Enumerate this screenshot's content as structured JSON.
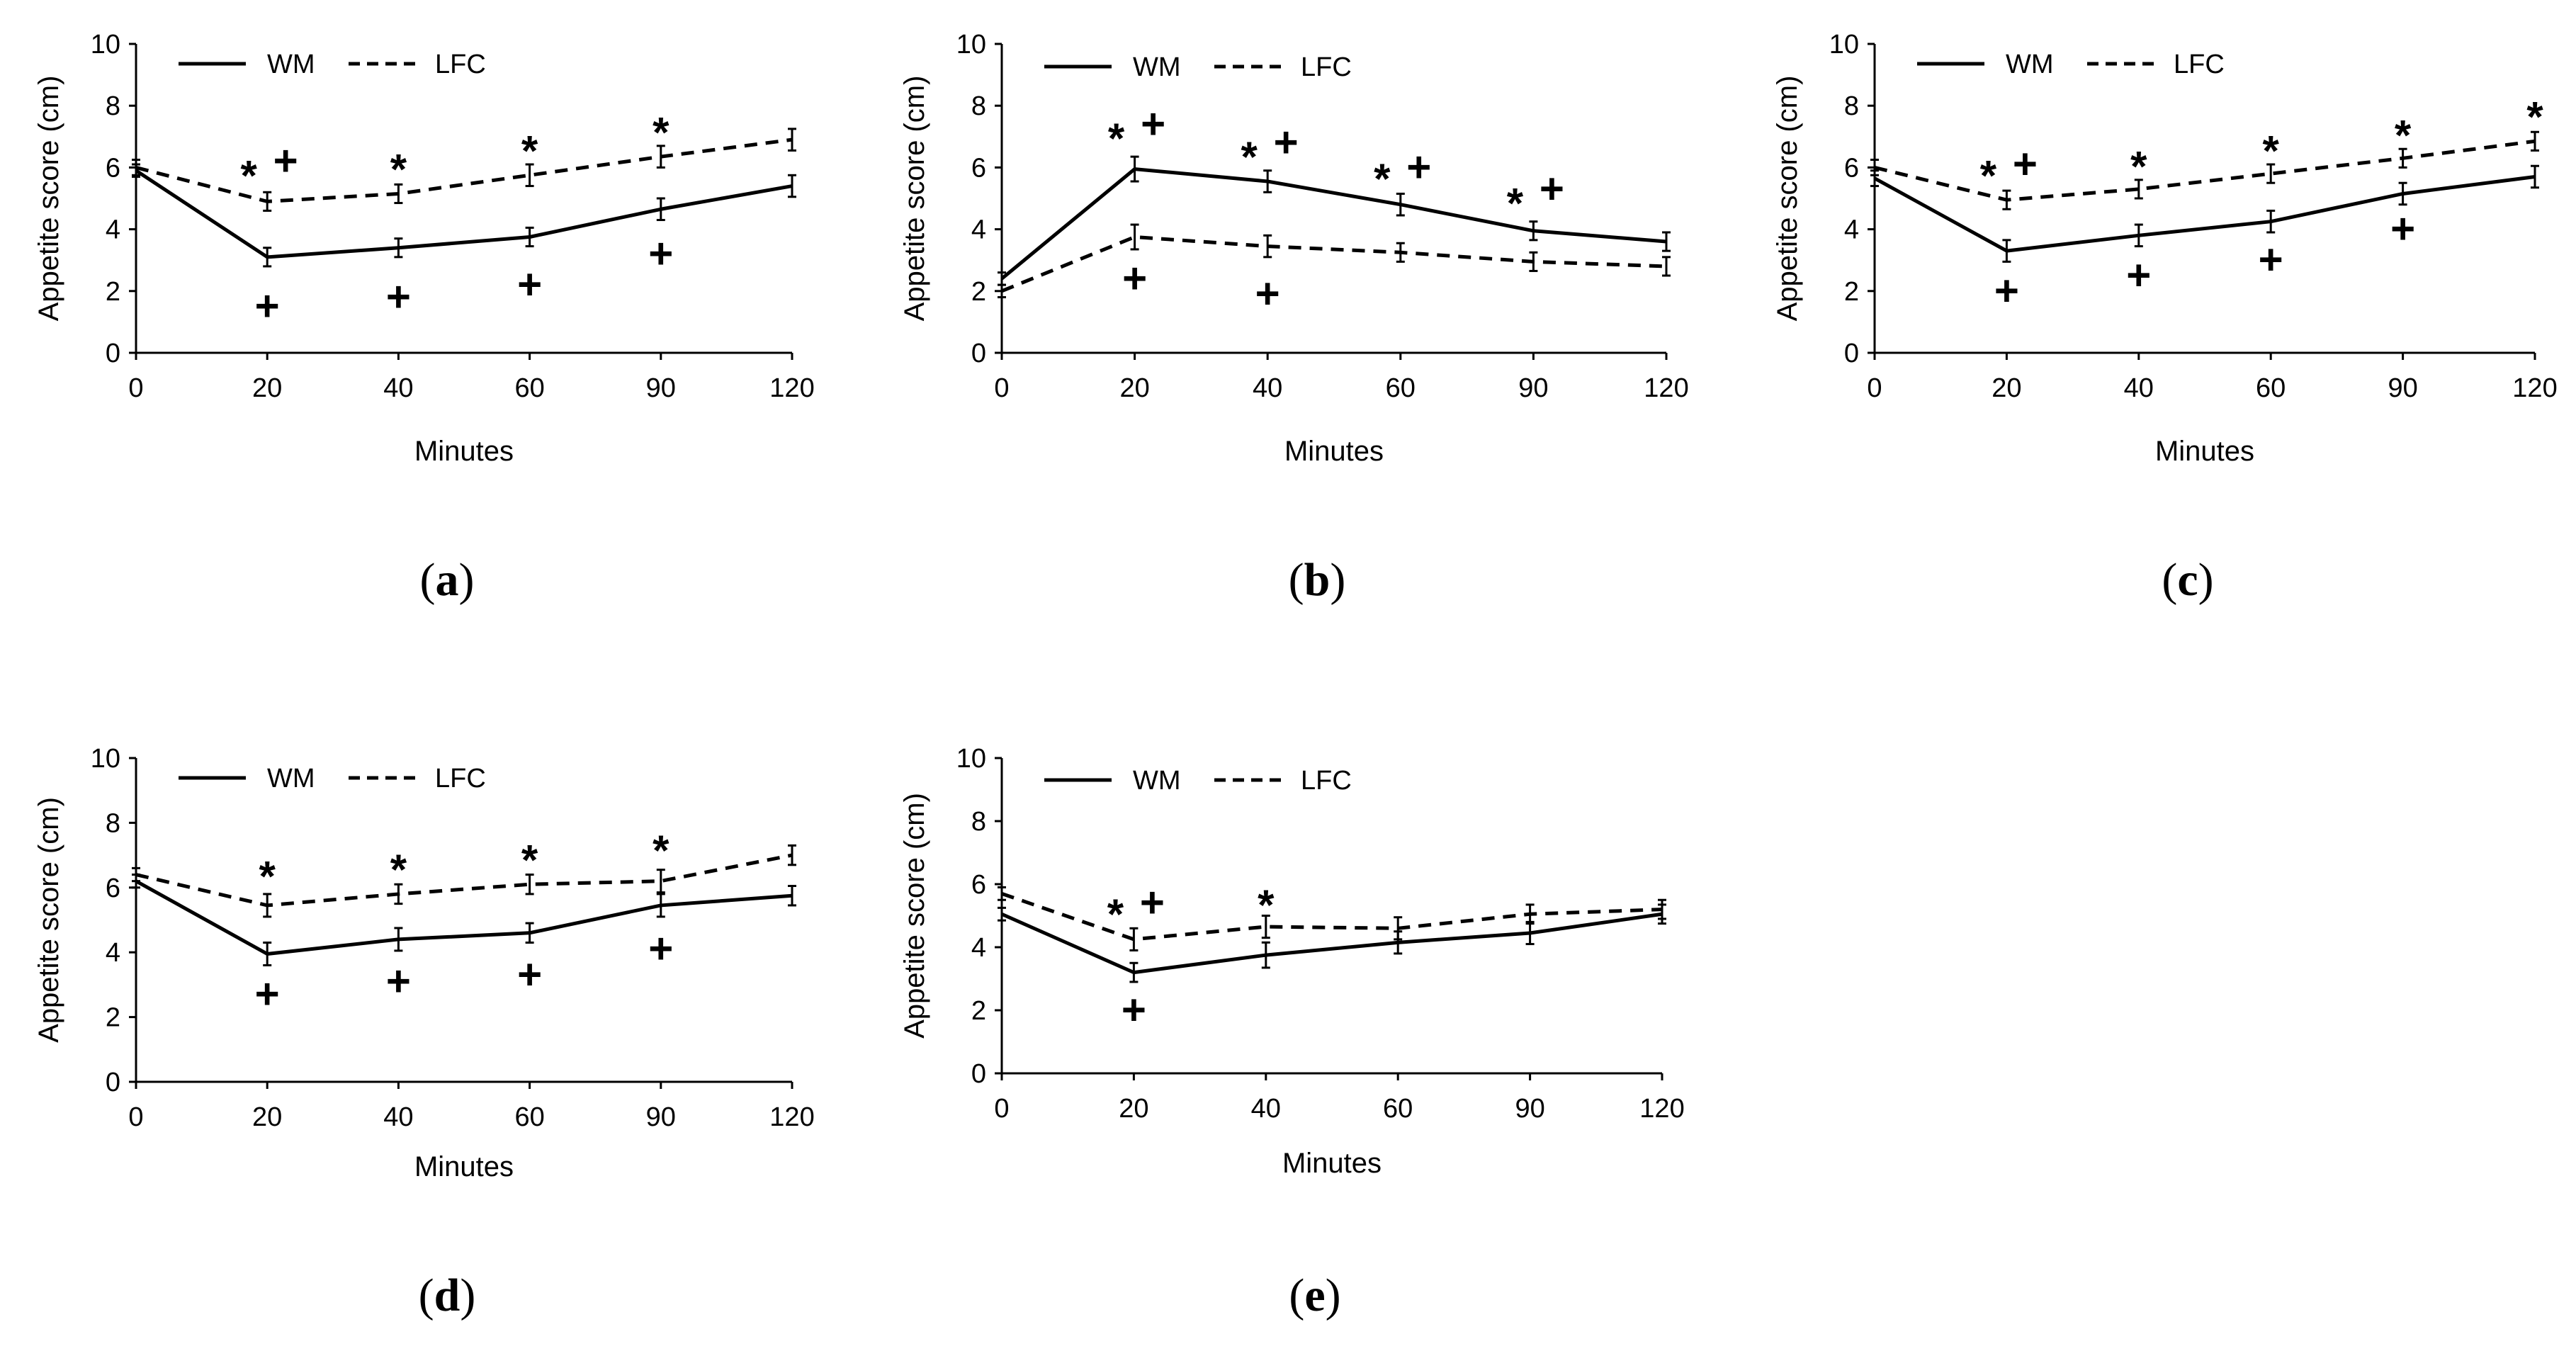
{
  "chart_data": [
    {
      "panel": "a",
      "type": "line",
      "x": [
        0,
        20,
        40,
        60,
        90,
        120
      ],
      "xticks": [
        "0",
        "20",
        "40",
        "60",
        "90",
        "120"
      ],
      "ylim": [
        0,
        10
      ],
      "yticks": [
        "0",
        "2",
        "4",
        "6",
        "8",
        "10"
      ],
      "xlabel": "Minutes",
      "ylabel": "Appetite score (cm)",
      "legend": [
        "WM",
        "LFC"
      ],
      "series": [
        {
          "name": "WM",
          "style": "solid",
          "values": [
            5.9,
            3.1,
            3.4,
            3.75,
            4.65,
            5.4
          ],
          "err": [
            0.2,
            0.3,
            0.3,
            0.3,
            0.35,
            0.35
          ]
        },
        {
          "name": "LFC",
          "style": "dashed",
          "values": [
            6.0,
            4.9,
            5.15,
            5.75,
            6.35,
            6.9
          ],
          "err": [
            0.25,
            0.3,
            0.3,
            0.35,
            0.35,
            0.35
          ]
        }
      ],
      "annotations": [
        {
          "text": "*",
          "x": 20,
          "y": 6.0,
          "pos": "left"
        },
        {
          "text": "+",
          "x": 20,
          "y": 6.2,
          "pos": "right"
        },
        {
          "text": "*",
          "x": 40,
          "y": 6.2,
          "pos": "center"
        },
        {
          "text": "*",
          "x": 60,
          "y": 6.8,
          "pos": "center"
        },
        {
          "text": "*",
          "x": 90,
          "y": 7.4,
          "pos": "center"
        },
        {
          "text": "+",
          "x": 20,
          "y": 1.5,
          "pos": "center"
        },
        {
          "text": "+",
          "x": 40,
          "y": 1.8,
          "pos": "center"
        },
        {
          "text": "+",
          "x": 60,
          "y": 2.2,
          "pos": "center"
        },
        {
          "text": "+",
          "x": 90,
          "y": 3.2,
          "pos": "center"
        }
      ],
      "label_letter": "a"
    },
    {
      "panel": "b",
      "type": "line",
      "x": [
        0,
        20,
        40,
        60,
        90,
        120
      ],
      "xticks": [
        "0",
        "20",
        "40",
        "60",
        "90",
        "120"
      ],
      "ylim": [
        0,
        10
      ],
      "yticks": [
        "0",
        "2",
        "4",
        "6",
        "8",
        "10"
      ],
      "xlabel": "Minutes",
      "ylabel": "Appetite score (cm)",
      "legend": [
        "WM",
        "LFC"
      ],
      "series": [
        {
          "name": "WM",
          "style": "solid",
          "values": [
            2.4,
            5.95,
            5.55,
            4.8,
            3.95,
            3.6
          ],
          "err": [
            0.2,
            0.4,
            0.35,
            0.35,
            0.3,
            0.3
          ]
        },
        {
          "name": "LFC",
          "style": "dashed",
          "values": [
            2.0,
            3.75,
            3.45,
            3.25,
            2.95,
            2.8
          ],
          "err": [
            0.2,
            0.4,
            0.35,
            0.3,
            0.3,
            0.3
          ]
        }
      ],
      "annotations": [
        {
          "text": "*",
          "x": 20,
          "y": 7.2,
          "pos": "left"
        },
        {
          "text": "+",
          "x": 20,
          "y": 7.4,
          "pos": "right"
        },
        {
          "text": "*",
          "x": 40,
          "y": 6.6,
          "pos": "left"
        },
        {
          "text": "+",
          "x": 40,
          "y": 6.8,
          "pos": "right"
        },
        {
          "text": "*",
          "x": 60,
          "y": 5.9,
          "pos": "left"
        },
        {
          "text": "+",
          "x": 60,
          "y": 6.0,
          "pos": "right"
        },
        {
          "text": "*",
          "x": 90,
          "y": 5.1,
          "pos": "left"
        },
        {
          "text": "+",
          "x": 90,
          "y": 5.3,
          "pos": "right"
        },
        {
          "text": "+",
          "x": 20,
          "y": 2.4,
          "pos": "center"
        },
        {
          "text": "+",
          "x": 40,
          "y": 1.9,
          "pos": "center"
        }
      ],
      "label_letter": "b"
    },
    {
      "panel": "c",
      "type": "line",
      "x": [
        0,
        20,
        40,
        60,
        90,
        120
      ],
      "xticks": [
        "0",
        "20",
        "40",
        "60",
        "90",
        "120"
      ],
      "ylim": [
        0,
        10
      ],
      "yticks": [
        "0",
        "2",
        "4",
        "6",
        "8",
        "10"
      ],
      "xlabel": "Minutes",
      "ylabel": "Appetite score (cm)",
      "legend": [
        "WM",
        "LFC"
      ],
      "series": [
        {
          "name": "WM",
          "style": "solid",
          "values": [
            5.65,
            3.3,
            3.8,
            4.25,
            5.15,
            5.7
          ],
          "err": [
            0.25,
            0.35,
            0.35,
            0.35,
            0.35,
            0.35
          ]
        },
        {
          "name": "LFC",
          "style": "dashed",
          "values": [
            6.0,
            4.95,
            5.3,
            5.8,
            6.3,
            6.85
          ],
          "err": [
            0.25,
            0.3,
            0.3,
            0.3,
            0.3,
            0.3
          ]
        }
      ],
      "annotations": [
        {
          "text": "*",
          "x": 20,
          "y": 6.0,
          "pos": "left"
        },
        {
          "text": "+",
          "x": 20,
          "y": 6.1,
          "pos": "right"
        },
        {
          "text": "*",
          "x": 40,
          "y": 6.3,
          "pos": "center"
        },
        {
          "text": "*",
          "x": 60,
          "y": 6.8,
          "pos": "center"
        },
        {
          "text": "*",
          "x": 90,
          "y": 7.3,
          "pos": "center"
        },
        {
          "text": "*",
          "x": 120,
          "y": 7.9,
          "pos": "center"
        },
        {
          "text": "+",
          "x": 20,
          "y": 2.0,
          "pos": "center"
        },
        {
          "text": "+",
          "x": 40,
          "y": 2.5,
          "pos": "center"
        },
        {
          "text": "+",
          "x": 60,
          "y": 3.0,
          "pos": "center"
        },
        {
          "text": "+",
          "x": 90,
          "y": 4.0,
          "pos": "center"
        }
      ],
      "label_letter": "c"
    },
    {
      "panel": "d",
      "type": "line",
      "x": [
        0,
        20,
        40,
        60,
        90,
        120
      ],
      "xticks": [
        "0",
        "20",
        "40",
        "60",
        "90",
        "120"
      ],
      "ylim": [
        0,
        10
      ],
      "yticks": [
        "0",
        "2",
        "4",
        "6",
        "8",
        "10"
      ],
      "xlabel": "Minutes",
      "ylabel": "Appetite score (cm)",
      "legend": [
        "WM",
        "LFC"
      ],
      "series": [
        {
          "name": "WM",
          "style": "solid",
          "values": [
            6.2,
            3.95,
            4.4,
            4.6,
            5.45,
            5.75
          ],
          "err": [
            0.2,
            0.35,
            0.35,
            0.3,
            0.35,
            0.3
          ]
        },
        {
          "name": "LFC",
          "style": "dashed",
          "values": [
            6.4,
            5.45,
            5.8,
            6.1,
            6.2,
            7.0
          ],
          "err": [
            0.2,
            0.35,
            0.3,
            0.3,
            0.35,
            0.3
          ]
        }
      ],
      "annotations": [
        {
          "text": "*",
          "x": 20,
          "y": 6.6,
          "pos": "center"
        },
        {
          "text": "*",
          "x": 40,
          "y": 6.8,
          "pos": "center"
        },
        {
          "text": "*",
          "x": 60,
          "y": 7.1,
          "pos": "center"
        },
        {
          "text": "*",
          "x": 90,
          "y": 7.4,
          "pos": "center"
        },
        {
          "text": "+",
          "x": 20,
          "y": 2.7,
          "pos": "center"
        },
        {
          "text": "+",
          "x": 40,
          "y": 3.1,
          "pos": "center"
        },
        {
          "text": "+",
          "x": 60,
          "y": 3.3,
          "pos": "center"
        },
        {
          "text": "+",
          "x": 90,
          "y": 4.1,
          "pos": "center"
        }
      ],
      "label_letter": "d"
    },
    {
      "panel": "e",
      "type": "line",
      "x": [
        0,
        20,
        40,
        60,
        90,
        120
      ],
      "xticks": [
        "0",
        "20",
        "40",
        "60",
        "90",
        "120"
      ],
      "ylim": [
        0,
        10
      ],
      "yticks": [
        "0",
        "2",
        "4",
        "6",
        "8",
        "10"
      ],
      "xlabel": "Minutes",
      "ylabel": "Appetite score (cm)",
      "legend": [
        "WM",
        "LFC"
      ],
      "series": [
        {
          "name": "WM",
          "style": "solid",
          "values": [
            5.05,
            3.2,
            3.75,
            4.15,
            4.45,
            5.05
          ],
          "err": [
            0.2,
            0.3,
            0.4,
            0.35,
            0.35,
            0.3
          ]
        },
        {
          "name": "LFC",
          "style": "dashed",
          "values": [
            5.7,
            4.25,
            4.65,
            4.6,
            5.05,
            5.2
          ],
          "err": [
            0.2,
            0.35,
            0.35,
            0.35,
            0.3,
            0.3
          ]
        }
      ],
      "annotations": [
        {
          "text": "*",
          "x": 20,
          "y": 5.3,
          "pos": "left"
        },
        {
          "text": "+",
          "x": 20,
          "y": 5.4,
          "pos": "right"
        },
        {
          "text": "*",
          "x": 40,
          "y": 5.6,
          "pos": "center"
        },
        {
          "text": "+",
          "x": 20,
          "y": 2.0,
          "pos": "center"
        }
      ],
      "label_letter": "e"
    }
  ],
  "colors": {
    "ink": "#000000",
    "background": "#ffffff"
  }
}
